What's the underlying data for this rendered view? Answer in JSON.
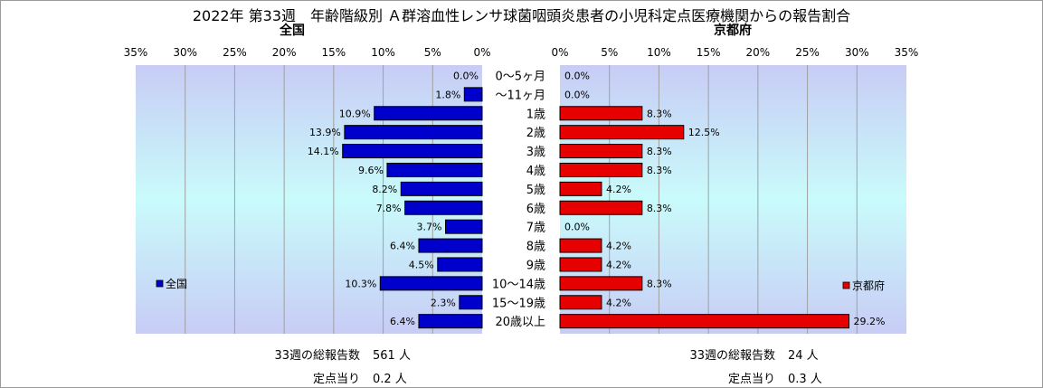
{
  "title": "2022年 第33週　年齢階級別 Ａ群溶血性レンサ球菌咽頭炎患者の小児科定点医療機関からの報告割合",
  "left_panel": {
    "region": "全国",
    "legend": "全国",
    "footer": {
      "total_label": "33週の総報告数",
      "total_value": "561 人",
      "per_label": "定点当り",
      "per_value": "0.2 人"
    }
  },
  "right_panel": {
    "region": "京都府",
    "legend": "京都府",
    "footer": {
      "total_label": "33週の総報告数",
      "total_value": "24 人",
      "per_label": "定点当り",
      "per_value": "0.3 人"
    }
  },
  "colors": {
    "national": "#0000cc",
    "kyoto": "#e60000",
    "plot_bg_top": "#c8ccf5",
    "plot_bg_mid": "#c9fbfb"
  },
  "chart_data": [
    {
      "type": "bar",
      "orientation": "horizontal",
      "direction": "right-to-left",
      "title": "全国",
      "categories": [
        "0〜5ヶ月",
        "〜11ヶ月",
        "1歳",
        "2歳",
        "3歳",
        "4歳",
        "5歳",
        "6歳",
        "7歳",
        "8歳",
        "9歳",
        "10〜14歳",
        "15〜19歳",
        "20歳以上"
      ],
      "series": [
        {
          "name": "全国",
          "values": [
            0.0,
            1.8,
            10.9,
            13.9,
            14.1,
            9.6,
            8.2,
            7.8,
            3.7,
            6.4,
            4.5,
            10.3,
            2.3,
            6.4
          ]
        }
      ],
      "value_labels": [
        "0.0%",
        "1.8%",
        "10.9%",
        "13.9%",
        "14.1%",
        "9.6%",
        "8.2%",
        "7.8%",
        "3.7%",
        "6.4%",
        "4.5%",
        "10.3%",
        "2.3%",
        "6.4%"
      ],
      "xticks": [
        "35%",
        "30%",
        "25%",
        "20%",
        "15%",
        "10%",
        "5%",
        "0%"
      ],
      "xlim": [
        0,
        35
      ],
      "unit": "%",
      "grid": true,
      "legend_position": "left"
    },
    {
      "type": "bar",
      "orientation": "horizontal",
      "direction": "left-to-right",
      "title": "京都府",
      "categories": [
        "0〜5ヶ月",
        "〜11ヶ月",
        "1歳",
        "2歳",
        "3歳",
        "4歳",
        "5歳",
        "6歳",
        "7歳",
        "8歳",
        "9歳",
        "10〜14歳",
        "15〜19歳",
        "20歳以上"
      ],
      "series": [
        {
          "name": "京都府",
          "values": [
            0.0,
            0.0,
            8.3,
            12.5,
            8.3,
            8.3,
            4.2,
            8.3,
            0.0,
            4.2,
            4.2,
            8.3,
            4.2,
            29.2
          ]
        }
      ],
      "value_labels": [
        "0.0%",
        "0.0%",
        "8.3%",
        "12.5%",
        "8.3%",
        "8.3%",
        "4.2%",
        "8.3%",
        "0.0%",
        "4.2%",
        "4.2%",
        "8.3%",
        "4.2%",
        "29.2%"
      ],
      "xticks": [
        "0%",
        "5%",
        "10%",
        "15%",
        "20%",
        "25%",
        "30%",
        "35%"
      ],
      "xlim": [
        0,
        35
      ],
      "unit": "%",
      "grid": true,
      "legend_position": "right"
    }
  ]
}
